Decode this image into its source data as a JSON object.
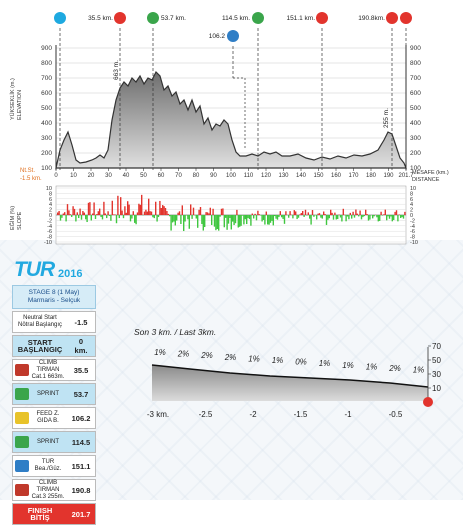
{
  "profile": {
    "y_axis_label_tr": "YÜKSEKLİK (m.)",
    "y_axis_label_en": "ELEVATION",
    "y_ticks": [
      "900",
      "800",
      "700",
      "600",
      "500",
      "400",
      "300",
      "200",
      "100"
    ],
    "x_ticks": [
      "0",
      "10",
      "20",
      "30",
      "40",
      "50",
      "60",
      "70",
      "80",
      "90",
      "100",
      "110",
      "120",
      "130",
      "140",
      "150",
      "160",
      "170",
      "180",
      "190",
      "201.7"
    ],
    "sea_level_label": "Nt.St.",
    "sea_level_sub": "-1.5 km.",
    "distance_label_tr": "MESAFE (km.)",
    "distance_label_en": "DISTANCE",
    "peak_label": "663 m.",
    "climb2_label": "255 m.",
    "markers": [
      {
        "km": "0",
        "label": "",
        "color": "#1ea9e0",
        "icon": "start-flag-icon"
      },
      {
        "km": "35.5",
        "label": "35.5 km.",
        "color": "#e2342d",
        "icon": "climb-icon"
      },
      {
        "km": "53.7",
        "label": "53.7 km.",
        "color": "#3aa54b",
        "icon": "sprint-icon"
      },
      {
        "km": "106.2",
        "label": "106.2",
        "color": "#2f7ec6",
        "icon": "feed-zone-icon"
      },
      {
        "km": "114.5",
        "label": "114.5 km.",
        "color": "#3aa54b",
        "icon": "sprint-icon"
      },
      {
        "km": "151.1",
        "label": "151.1 km.",
        "color": "#e2342d",
        "icon": "tur-sprint-icon"
      },
      {
        "km": "190.8",
        "label": "190.8km.",
        "color": "#e2342d",
        "icon": "climb-icon"
      },
      {
        "km": "201.7",
        "label": "",
        "color": "#e2342d",
        "icon": "finish-flag-icon"
      }
    ]
  },
  "slope": {
    "y_axis_label_tr": "EĞİM (%)",
    "y_axis_label_en": "SLOPE",
    "y_ticks": [
      "10",
      "8",
      "6",
      "4",
      "2",
      "0",
      "-2",
      "-4",
      "-6",
      "-8",
      "-10"
    ]
  },
  "stage": {
    "logo_text": "TUR",
    "year": "2016",
    "title": "STAGE 8 (1 May)",
    "route": "Marmaris - Selçuk"
  },
  "table": [
    {
      "label": "Neutral Start\nNötral Başlangıç",
      "value": "-1.5",
      "style": "white"
    },
    {
      "label": "START\nBAŞLANGIÇ",
      "value": "0\nkm.",
      "style": "blue big"
    },
    {
      "label": "CLIMB\nTIRMAN\nCat.1 663m.",
      "value": "35.5",
      "style": "white",
      "jersey": "#c0392b"
    },
    {
      "label": "SPRINT",
      "value": "53.7",
      "style": "blue",
      "jersey": "#3aa54b"
    },
    {
      "label": "FEED Z.\nGIDA B.",
      "value": "106.2",
      "style": "white",
      "jersey": "#e8c32a"
    },
    {
      "label": "SPRINT",
      "value": "114.5",
      "style": "blue",
      "jersey": "#3aa54b"
    },
    {
      "label": "TUR\nBea./Güz.",
      "value": "151.1",
      "style": "white",
      "jersey": "#2f7ec6"
    },
    {
      "label": "CLIMB\nTIRMAN\nCat.3 255m.",
      "value": "190.8",
      "style": "white",
      "jersey": "#c0392b"
    },
    {
      "label": "FINISH\nBİTİŞ",
      "value": "201.7",
      "style": "red big"
    }
  ],
  "last3": {
    "title": "Son 3 km. / Last 3km.",
    "pct_labels": [
      "1%",
      "2%",
      "2%",
      "2%",
      "1%",
      "1%",
      "0%",
      "1%",
      "1%",
      "1%",
      "2%",
      "1%"
    ],
    "x_ticks": [
      "-3 km.",
      "-2.5",
      "-2",
      "-1.5",
      "-1",
      "-0.5"
    ],
    "y_ticks": [
      "70",
      "50",
      "30",
      "10"
    ]
  }
}
